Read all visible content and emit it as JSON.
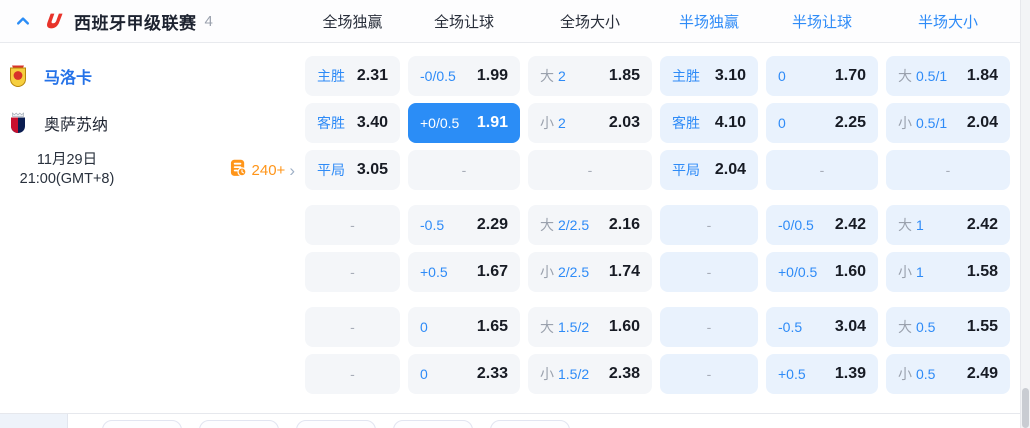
{
  "header": {
    "league_title": "西班牙甲级联赛",
    "match_count": "4",
    "columns": [
      {
        "label": "全场独赢",
        "tone": "full"
      },
      {
        "label": "全场让球",
        "tone": "full"
      },
      {
        "label": "全场大小",
        "tone": "full"
      },
      {
        "label": "半场独赢",
        "tone": "half"
      },
      {
        "label": "半场让球",
        "tone": "half"
      },
      {
        "label": "半场大小",
        "tone": "half"
      }
    ]
  },
  "match": {
    "home_name": "马洛卡",
    "away_name": "奥萨苏纳",
    "date": "11月29日",
    "time": "21:00(GMT+8)",
    "more_markets_label": "240+"
  },
  "colors": {
    "accent_blue": "#2e8bf7",
    "selected_cell": "#2b8df6",
    "orange": "#ff9519",
    "full_cell_bg": "#f4f6f9",
    "half_cell_bg": "#e9f2fd"
  },
  "odds_groups": [
    {
      "rows": [
        [
          {
            "type": "1x2",
            "label": "主胜",
            "odds": "2.31"
          },
          {
            "type": "hcp",
            "label": "-0/0.5",
            "odds": "1.99"
          },
          {
            "type": "ou",
            "prefix": "大",
            "line": "2",
            "odds": "1.85"
          },
          {
            "type": "1x2",
            "label": "主胜",
            "odds": "3.10"
          },
          {
            "type": "hcp",
            "label": "0",
            "odds": "1.70"
          },
          {
            "type": "ou",
            "prefix": "大",
            "line": "0.5/1",
            "odds": "1.84"
          }
        ],
        [
          {
            "type": "1x2",
            "label": "客胜",
            "odds": "3.40"
          },
          {
            "type": "hcp",
            "label": "+0/0.5",
            "odds": "1.91",
            "selected": true
          },
          {
            "type": "ou",
            "prefix": "小",
            "line": "2",
            "odds": "2.03"
          },
          {
            "type": "1x2",
            "label": "客胜",
            "odds": "4.10"
          },
          {
            "type": "hcp",
            "label": "0",
            "odds": "2.25"
          },
          {
            "type": "ou",
            "prefix": "小",
            "line": "0.5/1",
            "odds": "2.04"
          }
        ],
        [
          {
            "type": "1x2",
            "label": "平局",
            "odds": "3.05"
          },
          {
            "type": "empty",
            "dash": "-"
          },
          {
            "type": "empty",
            "dash": "-"
          },
          {
            "type": "1x2",
            "label": "平局",
            "odds": "2.04"
          },
          {
            "type": "empty",
            "dash": "-"
          },
          {
            "type": "empty",
            "dash": "-"
          }
        ]
      ]
    },
    {
      "rows": [
        [
          {
            "type": "empty",
            "dash": "-"
          },
          {
            "type": "hcp",
            "label": "-0.5",
            "odds": "2.29"
          },
          {
            "type": "ou",
            "prefix": "大",
            "line": "2/2.5",
            "odds": "2.16"
          },
          {
            "type": "empty",
            "dash": "-"
          },
          {
            "type": "hcp",
            "label": "-0/0.5",
            "odds": "2.42"
          },
          {
            "type": "ou",
            "prefix": "大",
            "line": "1",
            "odds": "2.42"
          }
        ],
        [
          {
            "type": "empty",
            "dash": "-"
          },
          {
            "type": "hcp",
            "label": "+0.5",
            "odds": "1.67"
          },
          {
            "type": "ou",
            "prefix": "小",
            "line": "2/2.5",
            "odds": "1.74"
          },
          {
            "type": "empty",
            "dash": "-"
          },
          {
            "type": "hcp",
            "label": "+0/0.5",
            "odds": "1.60"
          },
          {
            "type": "ou",
            "prefix": "小",
            "line": "1",
            "odds": "1.58"
          }
        ]
      ]
    },
    {
      "rows": [
        [
          {
            "type": "empty",
            "dash": "-"
          },
          {
            "type": "hcp",
            "label": "0",
            "odds": "1.65"
          },
          {
            "type": "ou",
            "prefix": "大",
            "line": "1.5/2",
            "odds": "1.60"
          },
          {
            "type": "empty",
            "dash": "-"
          },
          {
            "type": "hcp",
            "label": "-0.5",
            "odds": "3.04"
          },
          {
            "type": "ou",
            "prefix": "大",
            "line": "0.5",
            "odds": "1.55"
          }
        ],
        [
          {
            "type": "empty",
            "dash": "-"
          },
          {
            "type": "hcp",
            "label": "0",
            "odds": "2.33"
          },
          {
            "type": "ou",
            "prefix": "小",
            "line": "1.5/2",
            "odds": "2.38"
          },
          {
            "type": "empty",
            "dash": "-"
          },
          {
            "type": "hcp",
            "label": "+0.5",
            "odds": "1.39"
          },
          {
            "type": "ou",
            "prefix": "小",
            "line": "0.5",
            "odds": "2.49"
          }
        ]
      ]
    }
  ],
  "bottom": {
    "tab_count": 5
  }
}
